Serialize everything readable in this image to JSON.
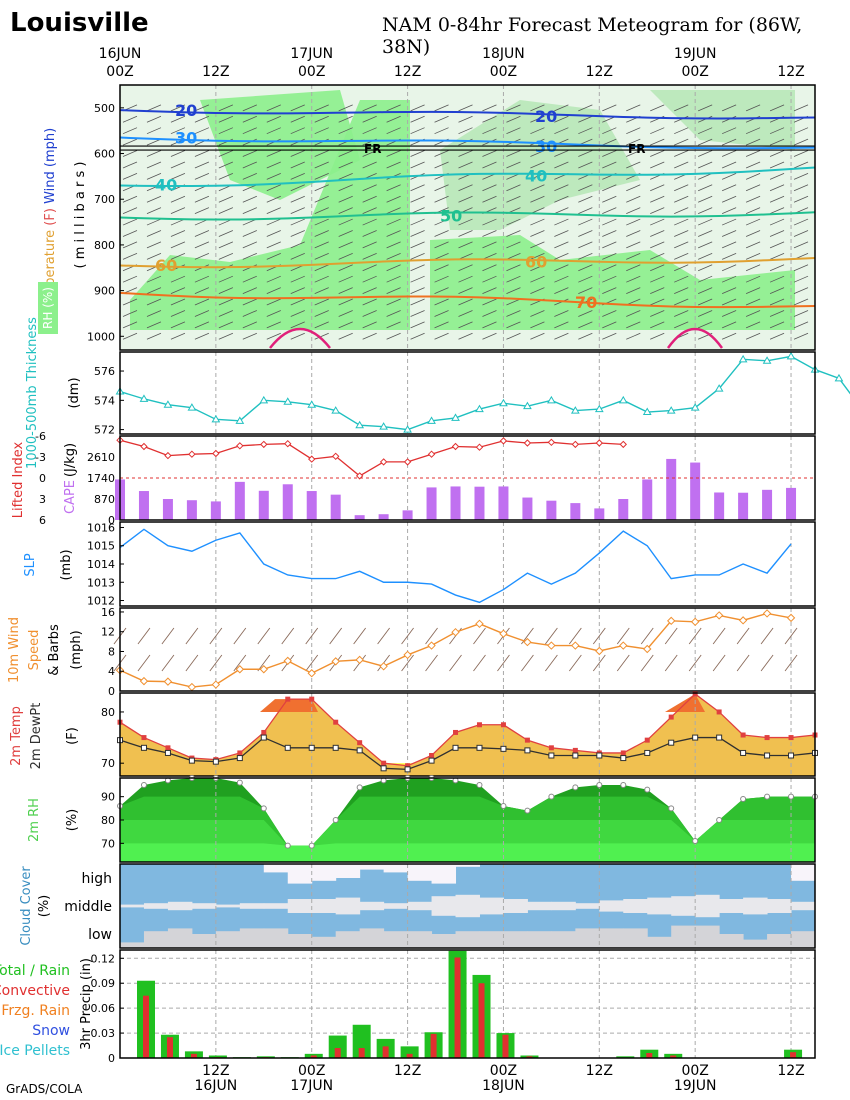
{
  "header": {
    "city": "Louisville",
    "title": "NAM 0-84hr Forecast Meteogram for (86W, 38N)"
  },
  "footer": "GrADS/COLA",
  "chart_data": [
    {
      "panel": "upper-air",
      "type": "contour",
      "ylabel_parts": [
        "Temperature",
        "(F)",
        "Wind",
        "(mph)"
      ],
      "ylabel2": "( m i l l i b a r s )",
      "rh_label": "RH (%)",
      "y_ticks": [
        "500",
        "600",
        "700",
        "800",
        "900",
        "1000"
      ],
      "ylim": [
        450,
        1030
      ],
      "wind_contours": [
        {
          "label": "20",
          "color": "#2040d0",
          "p_left": 505,
          "p_right": 522
        },
        {
          "label": "30",
          "color": "#1e90ff",
          "p_left": 565,
          "p_right": 588
        }
      ],
      "temp_contours": [
        {
          "label": "40",
          "color": "#20c0c0",
          "p_left": 670,
          "p_right": 632
        },
        {
          "label": "50",
          "color": "#20c090",
          "p_left": 740,
          "p_right": 730
        },
        {
          "label": "60",
          "color": "#e0a030",
          "p_left": 845,
          "p_right": 830
        },
        {
          "label": "70",
          "color": "#f07020",
          "p_left": 905,
          "p_right": 935
        }
      ],
      "freezing_label": "FR",
      "freezing_level": 588,
      "x_ticks_top": [
        "16JUN",
        "17JUN",
        "18JUN",
        "19JUN"
      ],
      "x_hours": [
        "00Z",
        "12Z",
        "00Z",
        "12Z",
        "00Z",
        "12Z",
        "00Z",
        "12Z"
      ]
    },
    {
      "panel": "thickness",
      "type": "line",
      "ylabel": "1000-500mb Thickness",
      "yunit": "(dm)",
      "y_ticks": [
        "572",
        "574",
        "576"
      ],
      "ylim": [
        571.7,
        577.3
      ],
      "color": "#20c0c0",
      "values": [
        574.6,
        574.1,
        573.7,
        573.5,
        572.7,
        572.6,
        574.0,
        573.9,
        573.7,
        573.3,
        572.3,
        572.2,
        572.0,
        572.6,
        572.8,
        573.4,
        573.8,
        573.6,
        574.0,
        573.3,
        573.4,
        574.0,
        573.2,
        573.3,
        573.5,
        574.8,
        576.8,
        576.7,
        577.0,
        576.1,
        575.5,
        573.3
      ]
    },
    {
      "panel": "stability",
      "type": "bar",
      "ylabel_left": "Lifted Index",
      "ylabel_right": "CAPE",
      "yunit": "(J/kg)",
      "li_ticks": [
        "-6",
        "-3",
        "0",
        "3",
        "6"
      ],
      "cape_ticks": [
        "0",
        "870",
        "1740",
        "2610"
      ],
      "li_color": "#e03030",
      "cape_color": "#c070f0",
      "lifted_index": [
        -5.4,
        -4.5,
        -3.2,
        -3.4,
        -3.5,
        -4.6,
        -4.8,
        -4.9,
        -2.7,
        -3.1,
        -0.3,
        -2.3,
        -2.3,
        -3.4,
        -4.5,
        -4.4,
        -5.3,
        -5.0,
        -5.1,
        -4.8,
        -5.0,
        -4.8,
        -4.7,
        -6.0,
        -6.0,
        -6.0,
        -6.0,
        -6.0,
        -6.0,
        -6.0,
        -6.0,
        -6.0
      ],
      "cape": [
        1680,
        1200,
        870,
        820,
        770,
        1580,
        1210,
        1480,
        1200,
        1050,
        200,
        240,
        400,
        1350,
        1390,
        1380,
        1390,
        930,
        800,
        700,
        480,
        870,
        1680,
        2530,
        2380,
        1140,
        1130,
        1250,
        1330
      ]
    },
    {
      "panel": "slp",
      "type": "line",
      "ylabel": "SLP",
      "yunit": "(mb)",
      "y_ticks": [
        "1012",
        "1013",
        "1014",
        "1015",
        "1016"
      ],
      "ylim": [
        1011.7,
        1016.3
      ],
      "color": "#1e90ff",
      "values": [
        1014.9,
        1015.9,
        1015.0,
        1014.7,
        1015.3,
        1015.7,
        1014.0,
        1013.4,
        1013.2,
        1013.2,
        1013.6,
        1013.0,
        1013.0,
        1012.9,
        1012.3,
        1011.9,
        1012.6,
        1013.5,
        1012.9,
        1013.5,
        1014.6,
        1015.8,
        1015.0,
        1013.2,
        1013.4,
        1013.4,
        1014.0,
        1013.5,
        1015.1
      ]
    },
    {
      "panel": "wind10m",
      "type": "line",
      "ylabel": "10m Wind Speed & Barbs",
      "yunit": "(mph)",
      "y_ticks": [
        "0",
        "4",
        "8",
        "12",
        "16"
      ],
      "ylim": [
        0,
        16.8
      ],
      "color": "#f09030",
      "values": [
        4.2,
        2.0,
        1.9,
        0.8,
        1.3,
        4.4,
        4.4,
        6.1,
        3.6,
        6.0,
        6.3,
        5.0,
        7.3,
        9.2,
        11.9,
        13.6,
        11.6,
        9.9,
        9.2,
        9.2,
        8.1,
        9.2,
        8.5,
        14.2,
        14.0,
        15.3,
        14.3,
        15.7,
        14.8
      ]
    },
    {
      "panel": "temp",
      "type": "area",
      "ylabel_temp": "2m Temp",
      "ylabel_dew": "2m DewPt",
      "yunit": "(F)",
      "y_ticks": [
        "70",
        "80"
      ],
      "ylim": [
        67.5,
        83.7
      ],
      "temp_color": "#e04040",
      "dew_color": "#303030",
      "temp": [
        78.0,
        75.0,
        73.0,
        71.0,
        70.7,
        72.0,
        76.0,
        82.5,
        82.5,
        78.0,
        74.0,
        70.0,
        69.5,
        71.5,
        76.0,
        77.5,
        77.5,
        74.5,
        73.0,
        72.5,
        72.0,
        72.0,
        74.5,
        79.0,
        83.5,
        80.0,
        75.5,
        75.0,
        75.0,
        75.5
      ],
      "dewpoint": [
        74.5,
        73.0,
        72.0,
        70.5,
        70.3,
        71.0,
        75.0,
        73.0,
        73.0,
        73.0,
        72.5,
        69.0,
        68.8,
        70.5,
        73.0,
        73.0,
        72.8,
        72.5,
        71.5,
        71.5,
        71.5,
        71.0,
        72.0,
        74.0,
        75.0,
        75.0,
        72.0,
        71.5,
        71.5,
        72.0
      ]
    },
    {
      "panel": "rh",
      "type": "area",
      "ylabel": "2m RH",
      "yunit": "(%)",
      "y_ticks": [
        "70",
        "80",
        "90"
      ],
      "ylim": [
        62,
        98
      ],
      "color": "#20b020",
      "values": [
        86,
        95,
        97,
        98,
        98,
        96,
        85,
        69,
        69,
        80,
        94,
        97,
        98,
        98,
        97,
        95,
        86,
        84,
        90,
        94,
        95,
        95,
        93,
        85,
        71,
        80,
        89,
        90,
        90,
        90
      ]
    },
    {
      "panel": "cloud",
      "type": "area",
      "ylabel": "Cloud Cover",
      "yunit": "(%)",
      "levels": [
        "high",
        "middle",
        "low"
      ],
      "color": "#80b8e0"
    },
    {
      "panel": "precip",
      "type": "bar",
      "ylabel": "3hr Precip (in)",
      "legend": [
        {
          "label": "Total / Rain",
          "color": "#20c020"
        },
        {
          "label": "Convective",
          "color": "#e03030"
        },
        {
          "label": "Frzg. Rain",
          "color": "#f08020"
        },
        {
          "label": "Snow",
          "color": "#3050e0"
        },
        {
          "label": "Ice Pellets",
          "color": "#30c0d0"
        }
      ],
      "y_ticks": [
        "0",
        "0.03",
        "0.06",
        "0.09",
        "0.12"
      ],
      "ylim": [
        0,
        0.13
      ],
      "total": [
        0.093,
        0.028,
        0.008,
        0.003,
        0.001,
        0.002,
        0.001,
        0.005,
        0.027,
        0.04,
        0.023,
        0.014,
        0.031,
        0.129,
        0.1,
        0.03,
        0.003,
        0,
        0,
        0,
        0.002,
        0.01,
        0.005,
        0,
        0,
        0,
        0,
        0.01
      ],
      "convective": [
        0.075,
        0.025,
        0.005,
        0.001,
        0,
        0.001,
        0,
        0.003,
        0.012,
        0.012,
        0.014,
        0.005,
        0.029,
        0.121,
        0.09,
        0.028,
        0.002,
        0,
        0,
        0,
        0,
        0.006,
        0.003,
        0,
        0,
        0,
        0,
        0.007
      ],
      "x_ticks_bottom": [
        "16JUN",
        "17JUN",
        "18JUN",
        "19JUN"
      ],
      "x_hours": [
        "12Z",
        "00Z",
        "12Z",
        "00Z",
        "12Z",
        "00Z",
        "12Z"
      ]
    }
  ]
}
